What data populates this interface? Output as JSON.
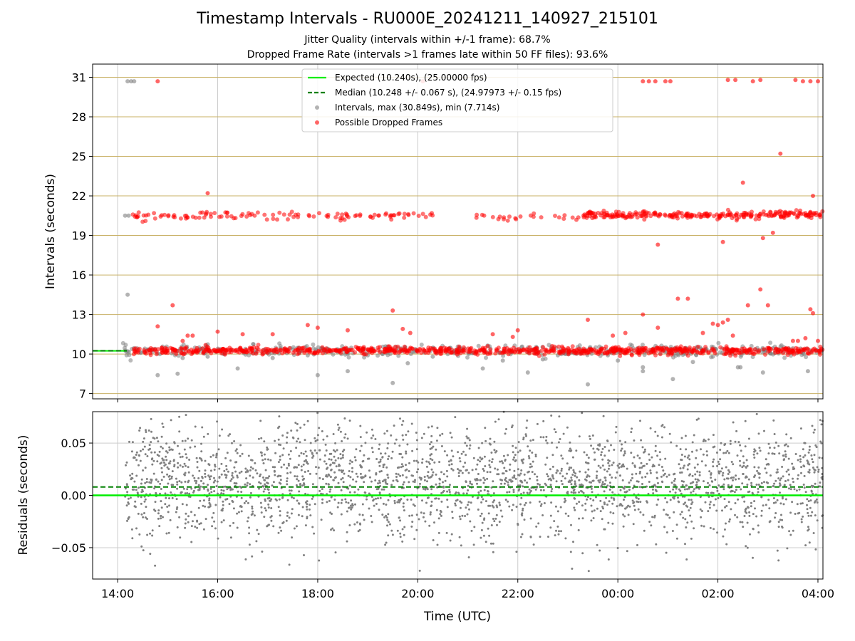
{
  "figure": {
    "title": "Timestamp Intervals - RU000E_20241211_140927_215101",
    "subtitle_line1": "Jitter Quality (intervals within +/-1 frame): 68.7%",
    "subtitle_line2": "Dropped Frame Rate (intervals >1 frames late within 50 FF files): 93.6%"
  },
  "chart_data": [
    {
      "type": "scatter",
      "panel": "top",
      "title": "",
      "ylabel": "Intervals (seconds)",
      "xlabel": "",
      "x_unit": "hours since 00:00 of 2024-12-11 (UTC)",
      "xlim": [
        13.5,
        28.1
      ],
      "ylim": [
        6.6,
        32.0
      ],
      "yticks": [
        7,
        10,
        13,
        16,
        19,
        22,
        25,
        28,
        31
      ],
      "ytick_labels": [
        "7",
        "10",
        "13",
        "16",
        "19",
        "22",
        "25",
        "28",
        "31"
      ],
      "xticks": [
        14,
        16,
        18,
        20,
        22,
        24,
        26,
        28
      ],
      "grid": true,
      "hgrid_color": "#c8b064",
      "legend": {
        "placement": "top-center",
        "entries": [
          {
            "label": "Expected (10.240s), (25.00000 fps)",
            "kind": "line",
            "color": "#00ee00",
            "dashed": false
          },
          {
            "label": "Median (10.248 +/- 0.067 s), (24.97973 +/- 0.15 fps)",
            "kind": "line",
            "color": "#008000",
            "dashed": true
          },
          {
            "label": "Intervals, max (30.849s), min (7.714s)",
            "kind": "marker",
            "color": "#808080"
          },
          {
            "label": "Possible Dropped Frames",
            "kind": "marker",
            "color": "#ff0000"
          }
        ]
      },
      "reference_lines": [
        {
          "name": "Expected",
          "y": 10.24,
          "color": "#00ee00",
          "dashed": false
        },
        {
          "name": "Median",
          "y": 10.248,
          "color": "#008000",
          "dashed": true
        }
      ],
      "series": [
        {
          "name": "Intervals",
          "color": "#808080",
          "points": [
            [
              14.2,
              30.7
            ],
            [
              14.27,
              30.7
            ],
            [
              14.33,
              30.7
            ],
            [
              14.2,
              14.5
            ],
            [
              14.15,
              20.5
            ],
            [
              14.22,
              20.5
            ],
            [
              14.8,
              8.4
            ],
            [
              15.2,
              8.5
            ],
            [
              15.3,
              9.7
            ],
            [
              16.4,
              8.9
            ],
            [
              17.8,
              9.9
            ],
            [
              18.0,
              8.4
            ],
            [
              18.6,
              8.7
            ],
            [
              19.5,
              7.8
            ],
            [
              19.8,
              9.3
            ],
            [
              21.3,
              8.9
            ],
            [
              21.7,
              9.5
            ],
            [
              22.2,
              8.6
            ],
            [
              22.5,
              9.6
            ],
            [
              23.4,
              7.7
            ],
            [
              24.0,
              9.5
            ],
            [
              24.5,
              8.7
            ],
            [
              24.5,
              9.0
            ],
            [
              25.1,
              8.1
            ],
            [
              25.5,
              9.4
            ],
            [
              26.4,
              9.0
            ],
            [
              26.45,
              9.0
            ],
            [
              26.9,
              8.6
            ],
            [
              27.8,
              8.7
            ],
            [
              22.8,
              9.9
            ],
            [
              20.3,
              9.8
            ],
            [
              17.1,
              9.7
            ],
            [
              25.9,
              9.8
            ],
            [
              23.8,
              9.9
            ],
            [
              19.0,
              9.9
            ],
            [
              15.8,
              9.8
            ]
          ],
          "band": {
            "x_range": [
              14.1,
              28.1
            ],
            "y_center": 10.25,
            "y_spread": 0.35,
            "count": 450
          }
        },
        {
          "name": "Possible Dropped Frames",
          "color": "#ff0000",
          "points": [
            [
              14.8,
              30.7
            ],
            [
              20.1,
              30.7
            ],
            [
              24.5,
              30.7
            ],
            [
              24.62,
              30.7
            ],
            [
              24.75,
              30.7
            ],
            [
              24.95,
              30.7
            ],
            [
              25.05,
              30.7
            ],
            [
              26.2,
              30.8
            ],
            [
              26.35,
              30.8
            ],
            [
              26.7,
              30.7
            ],
            [
              26.85,
              30.8
            ],
            [
              27.55,
              30.8
            ],
            [
              27.7,
              30.7
            ],
            [
              27.85,
              30.7
            ],
            [
              28.0,
              30.7
            ],
            [
              27.25,
              25.2
            ],
            [
              26.5,
              23.0
            ],
            [
              15.8,
              22.2
            ],
            [
              27.9,
              22.0
            ],
            [
              24.8,
              18.3
            ],
            [
              26.1,
              18.5
            ],
            [
              26.9,
              18.8
            ],
            [
              27.1,
              19.2
            ],
            [
              14.8,
              12.1
            ],
            [
              15.1,
              13.7
            ],
            [
              15.3,
              11.0
            ],
            [
              15.4,
              11.4
            ],
            [
              15.5,
              11.4
            ],
            [
              16.0,
              11.7
            ],
            [
              16.5,
              11.5
            ],
            [
              17.1,
              11.5
            ],
            [
              17.8,
              12.2
            ],
            [
              18.0,
              12.0
            ],
            [
              18.6,
              11.8
            ],
            [
              19.5,
              13.3
            ],
            [
              19.7,
              11.9
            ],
            [
              19.85,
              11.6
            ],
            [
              21.5,
              11.5
            ],
            [
              21.9,
              11.3
            ],
            [
              22.0,
              11.8
            ],
            [
              23.4,
              12.6
            ],
            [
              23.9,
              11.4
            ],
            [
              24.15,
              11.6
            ],
            [
              24.5,
              13.0
            ],
            [
              24.8,
              12.0
            ],
            [
              25.2,
              14.2
            ],
            [
              25.4,
              14.2
            ],
            [
              25.7,
              11.6
            ],
            [
              25.9,
              12.3
            ],
            [
              26.0,
              12.2
            ],
            [
              26.1,
              12.4
            ],
            [
              26.2,
              12.6
            ],
            [
              26.3,
              11.4
            ],
            [
              26.6,
              13.7
            ],
            [
              27.0,
              13.7
            ],
            [
              26.85,
              14.9
            ],
            [
              27.85,
              13.4
            ],
            [
              27.9,
              13.1
            ],
            [
              27.75,
              11.2
            ],
            [
              27.5,
              11.0
            ],
            [
              27.6,
              11.0
            ],
            [
              28.0,
              11.0
            ]
          ],
          "bands": [
            {
              "x_range": [
                14.3,
                28.1
              ],
              "y_center": 10.25,
              "y_spread": 0.2,
              "count": 900
            },
            {
              "x_range": [
                14.3,
                20.3
              ],
              "y_center": 20.5,
              "y_spread": 0.2,
              "count": 120
            },
            {
              "x_range": [
                21.1,
                23.3
              ],
              "y_center": 20.4,
              "y_spread": 0.2,
              "count": 25
            },
            {
              "x_range": [
                23.3,
                28.1
              ],
              "y_center": 20.55,
              "y_spread": 0.2,
              "count": 260
            }
          ]
        }
      ]
    },
    {
      "type": "scatter",
      "panel": "bottom",
      "title": "",
      "xlabel": "Time (UTC)",
      "ylabel": "Residuals (seconds)",
      "x_unit": "hours since 00:00 of 2024-12-11 (UTC)",
      "xlim": [
        13.5,
        28.1
      ],
      "ylim": [
        -0.08,
        0.08
      ],
      "yticks": [
        -0.05,
        0.0,
        0.05
      ],
      "ytick_labels": [
        "−0.05",
        "0.00",
        "0.05"
      ],
      "xticks": [
        14,
        16,
        18,
        20,
        22,
        24,
        26,
        28
      ],
      "xtick_labels": [
        "14:00",
        "16:00",
        "18:00",
        "20:00",
        "22:00",
        "00:00",
        "02:00",
        "04:00"
      ],
      "grid": true,
      "reference_lines": [
        {
          "name": "Expected",
          "y": 0.0,
          "color": "#00ee00",
          "dashed": false
        },
        {
          "name": "Median",
          "y": 0.008,
          "color": "#008000",
          "dashed": true
        }
      ],
      "series": [
        {
          "name": "Residuals",
          "color": "#808080",
          "cloud": {
            "x_range": [
              14.15,
              28.1
            ],
            "y_center": 0.012,
            "y_spread": 0.028,
            "count": 2600
          }
        }
      ]
    }
  ]
}
